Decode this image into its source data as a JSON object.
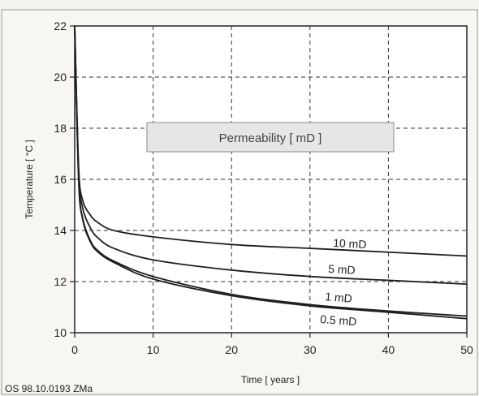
{
  "chart_data": {
    "type": "line",
    "xlabel": "Time [ years ]",
    "ylabel": "Temperature [ °C ]",
    "xlim": [
      0,
      50
    ],
    "ylim": [
      10,
      22
    ],
    "x_ticks": [
      "0",
      "10",
      "20",
      "30",
      "40",
      "50"
    ],
    "y_ticks": [
      "10",
      "12",
      "14",
      "16",
      "18",
      "20",
      "22"
    ],
    "grid": true,
    "legend_title": "Permeability [ mD ]",
    "series": [
      {
        "name": "10 mD",
        "x": [
          0,
          0.5,
          1,
          2,
          3,
          5,
          10,
          20,
          30,
          40,
          50
        ],
        "y": [
          22,
          16.5,
          15.2,
          14.6,
          14.3,
          14.0,
          13.75,
          13.45,
          13.3,
          13.15,
          13.0
        ]
      },
      {
        "name": "5 mD",
        "x": [
          0,
          0.5,
          1,
          2,
          3,
          5,
          10,
          20,
          30,
          40,
          50
        ],
        "y": [
          22,
          16.3,
          14.9,
          14.1,
          13.7,
          13.3,
          12.85,
          12.45,
          12.2,
          12.05,
          11.9
        ]
      },
      {
        "name": "1 mD",
        "x": [
          0,
          0.5,
          1,
          2,
          3,
          5,
          10,
          20,
          30,
          40,
          50
        ],
        "y": [
          22,
          16.0,
          14.5,
          13.6,
          13.2,
          12.8,
          12.2,
          11.5,
          11.1,
          10.85,
          10.65
        ]
      },
      {
        "name": "0.5 mD",
        "x": [
          0,
          0.5,
          1,
          2,
          3,
          5,
          10,
          20,
          30,
          40,
          50
        ],
        "y": [
          22,
          16.0,
          14.45,
          13.55,
          13.15,
          12.75,
          12.1,
          11.45,
          11.05,
          10.8,
          10.55
        ]
      }
    ]
  },
  "footer": {
    "code": "OS 98.10.0193 ZMa"
  }
}
